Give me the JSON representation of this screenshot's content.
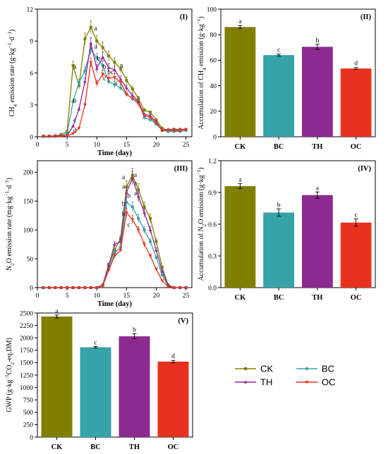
{
  "colors": {
    "CK": "#808000",
    "BC": "#36A3A8",
    "TH": "#8B2B8F",
    "OC": "#E8321E"
  },
  "legend": {
    "items": [
      "CK",
      "BC",
      "TH",
      "OC"
    ]
  },
  "chart_data": [
    {
      "panel": "(I)",
      "type": "line",
      "xlabel": "Time (day)",
      "ylabel": "CH4 emission rate (g·kg-1·d-1)",
      "xlim": [
        0,
        26
      ],
      "xticks": [
        0,
        5,
        10,
        15,
        20,
        25
      ],
      "ylim": [
        0,
        12
      ],
      "yticks": [
        0,
        3,
        6,
        9,
        12
      ],
      "series": [
        {
          "name": "CK",
          "x": [
            1,
            2,
            3,
            4,
            5,
            6,
            7,
            8,
            9,
            10,
            11,
            12,
            13,
            14,
            15,
            16,
            17,
            18,
            19,
            20,
            21,
            22,
            23,
            24,
            25
          ],
          "y": [
            0.05,
            0.05,
            0.1,
            0.2,
            0.5,
            6.7,
            4.8,
            9.2,
            10.3,
            9.0,
            8.4,
            7.6,
            7.0,
            6.4,
            5.3,
            4.5,
            3.6,
            2.5,
            2.3,
            1.6,
            0.8,
            0.6,
            0.7,
            0.7,
            0.7
          ]
        },
        {
          "name": "BC",
          "x": [
            1,
            2,
            3,
            4,
            5,
            6,
            7,
            8,
            9,
            10,
            11,
            12,
            13,
            14,
            15,
            16,
            17,
            18,
            19,
            20,
            21,
            22,
            23,
            24,
            25
          ],
          "y": [
            0.05,
            0.05,
            0.1,
            0.1,
            0.3,
            3.3,
            5.1,
            6.2,
            8.2,
            7.4,
            6.7,
            5.2,
            4.9,
            4.6,
            4.0,
            3.6,
            3.3,
            1.8,
            1.6,
            1.2,
            0.6,
            0.5,
            0.5,
            0.5,
            0.6
          ]
        },
        {
          "name": "TH",
          "x": [
            1,
            2,
            3,
            4,
            5,
            6,
            7,
            8,
            9,
            10,
            11,
            12,
            13,
            14,
            15,
            16,
            17,
            18,
            19,
            20,
            21,
            22,
            23,
            24,
            25
          ],
          "y": [
            0.05,
            0.05,
            0.05,
            0.1,
            0.1,
            1.0,
            2.6,
            5.2,
            8.8,
            6.4,
            7.5,
            6.5,
            6.3,
            5.4,
            4.6,
            3.9,
            3.3,
            2.1,
            2.0,
            1.4,
            0.6,
            0.7,
            0.7,
            0.6,
            0.7
          ]
        },
        {
          "name": "OC",
          "x": [
            1,
            2,
            3,
            4,
            5,
            6,
            7,
            8,
            9,
            10,
            11,
            12,
            13,
            14,
            15,
            16,
            17,
            18,
            19,
            20,
            21,
            22,
            23,
            24,
            25
          ],
          "y": [
            0.05,
            0.05,
            0.05,
            0.05,
            0.1,
            0.3,
            0.8,
            3.0,
            7.0,
            5.0,
            5.9,
            5.5,
            5.6,
            5.1,
            4.0,
            3.6,
            3.1,
            2.0,
            1.8,
            1.3,
            0.6,
            0.6,
            0.6,
            0.6,
            0.7
          ]
        }
      ],
      "annotations": [
        {
          "text": "a",
          "x": 6.3,
          "y": 6.4
        },
        {
          "text": "a",
          "x": 9.8,
          "y": 10.0
        },
        {
          "text": "a",
          "x": 14.2,
          "y": 6.5
        },
        {
          "text": "b",
          "x": 6.3,
          "y": 3.2
        },
        {
          "text": "c",
          "x": 6.3,
          "y": 1.4
        },
        {
          "text": "d",
          "x": 6.3,
          "y": 0.4
        },
        {
          "text": "a",
          "x": 9.8,
          "y": 8.3
        },
        {
          "text": "b",
          "x": 10.3,
          "y": 7.2
        },
        {
          "text": "b",
          "x": 11.3,
          "y": 6.4
        },
        {
          "text": "c",
          "x": 11.3,
          "y": 5.3
        },
        {
          "text": "bc",
          "x": 12.3,
          "y": 5.9
        },
        {
          "text": "c",
          "x": 13.4,
          "y": 4.9
        }
      ]
    },
    {
      "panel": "(II)",
      "type": "bar",
      "ylabel": "Accumulation of CH4 emission (g·kg-1)",
      "categories": [
        "CK",
        "BC",
        "TH",
        "OC"
      ],
      "values": [
        86,
        64,
        70.5,
        53.5
      ],
      "errors": [
        1.2,
        0.8,
        2.0,
        0.8
      ],
      "letters": [
        "a",
        "c",
        "b",
        "d"
      ],
      "ylim": [
        0,
        100
      ],
      "yticks": [
        0,
        20,
        40,
        60,
        80,
        100
      ]
    },
    {
      "panel": "(III)",
      "type": "line",
      "xlabel": "Time (day)",
      "ylabel": "N2O emission rate (mg·kg-1·d-1)",
      "xlim": [
        0,
        26
      ],
      "xticks": [
        0,
        5,
        10,
        15,
        20,
        25
      ],
      "ylim": [
        0,
        220
      ],
      "yticks": [
        0,
        50,
        100,
        150,
        200
      ],
      "series": [
        {
          "name": "CK",
          "x": [
            1,
            2,
            3,
            4,
            5,
            6,
            7,
            8,
            9,
            10,
            11,
            12,
            13,
            14,
            15,
            16,
            17,
            18,
            19,
            20,
            21,
            22,
            23,
            24,
            25
          ],
          "y": [
            0,
            0,
            0,
            0,
            0,
            0,
            0,
            0,
            0,
            0,
            5,
            40,
            65,
            85,
            175,
            195,
            170,
            140,
            120,
            80,
            35,
            5,
            0,
            0,
            0
          ]
        },
        {
          "name": "BC",
          "x": [
            1,
            2,
            3,
            4,
            5,
            6,
            7,
            8,
            9,
            10,
            11,
            12,
            13,
            14,
            15,
            16,
            17,
            18,
            19,
            20,
            21,
            22,
            23,
            24,
            25
          ],
          "y": [
            0,
            0,
            0,
            0,
            0,
            0,
            0,
            0,
            0,
            0,
            4,
            35,
            60,
            70,
            148,
            140,
            120,
            100,
            80,
            52,
            22,
            3,
            0,
            0,
            0
          ]
        },
        {
          "name": "TH",
          "x": [
            1,
            2,
            3,
            4,
            5,
            6,
            7,
            8,
            9,
            10,
            11,
            12,
            13,
            14,
            15,
            16,
            17,
            18,
            19,
            20,
            21,
            22,
            23,
            24,
            25
          ],
          "y": [
            0,
            0,
            0,
            0,
            0,
            0,
            0,
            0,
            0,
            0,
            4,
            38,
            75,
            80,
            165,
            190,
            158,
            130,
            100,
            65,
            28,
            4,
            0,
            0,
            0
          ]
        },
        {
          "name": "OC",
          "x": [
            1,
            2,
            3,
            4,
            5,
            6,
            7,
            8,
            9,
            10,
            11,
            12,
            13,
            14,
            15,
            16,
            17,
            18,
            19,
            20,
            21,
            22,
            23,
            24,
            25
          ],
          "y": [
            0,
            0,
            0,
            0,
            0,
            0,
            0,
            0,
            0,
            0,
            3,
            30,
            55,
            65,
            130,
            118,
            100,
            75,
            55,
            32,
            12,
            2,
            0,
            0,
            0
          ]
        }
      ],
      "annotations": [
        {
          "text": "a",
          "x": 16.5,
          "y": 192
        },
        {
          "text": "a",
          "x": 16.5,
          "y": 178
        },
        {
          "text": "a",
          "x": 16.5,
          "y": 160
        },
        {
          "text": "a",
          "x": 14.5,
          "y": 188
        },
        {
          "text": "a",
          "x": 14.5,
          "y": 172
        },
        {
          "text": "b",
          "x": 14.5,
          "y": 142
        },
        {
          "text": "b",
          "x": 14.5,
          "y": 124
        },
        {
          "text": "b",
          "x": 15.4,
          "y": 156
        },
        {
          "text": "c",
          "x": 15.4,
          "y": 106
        }
      ]
    },
    {
      "panel": "(IV)",
      "type": "bar",
      "ylabel": "Accumulation of N2O emission (g·kg-1)",
      "categories": [
        "CK",
        "BC",
        "TH",
        "OC"
      ],
      "values": [
        0.96,
        0.71,
        0.875,
        0.615
      ],
      "errors": [
        0.025,
        0.035,
        0.03,
        0.035
      ],
      "letters": [
        "a",
        "b",
        "a",
        "c"
      ],
      "ylim": [
        0,
        1.2
      ],
      "yticks": [
        "0.0",
        "0.3",
        "0.6",
        "0.9",
        "1.2"
      ]
    },
    {
      "panel": "(V)",
      "type": "bar",
      "ylabel": "GWP (g·kg-1CO2-eq.DM)",
      "categories": [
        "CK",
        "BC",
        "TH",
        "OC"
      ],
      "values": [
        2430,
        1810,
        2030,
        1520
      ],
      "errors": [
        30,
        15,
        50,
        25
      ],
      "letters": [
        "a",
        "c",
        "b",
        "d"
      ],
      "ylim": [
        0,
        2500
      ],
      "yticks": [
        0,
        250,
        500,
        750,
        1000,
        1250,
        1500,
        1750,
        2000,
        2250,
        2500
      ]
    }
  ]
}
